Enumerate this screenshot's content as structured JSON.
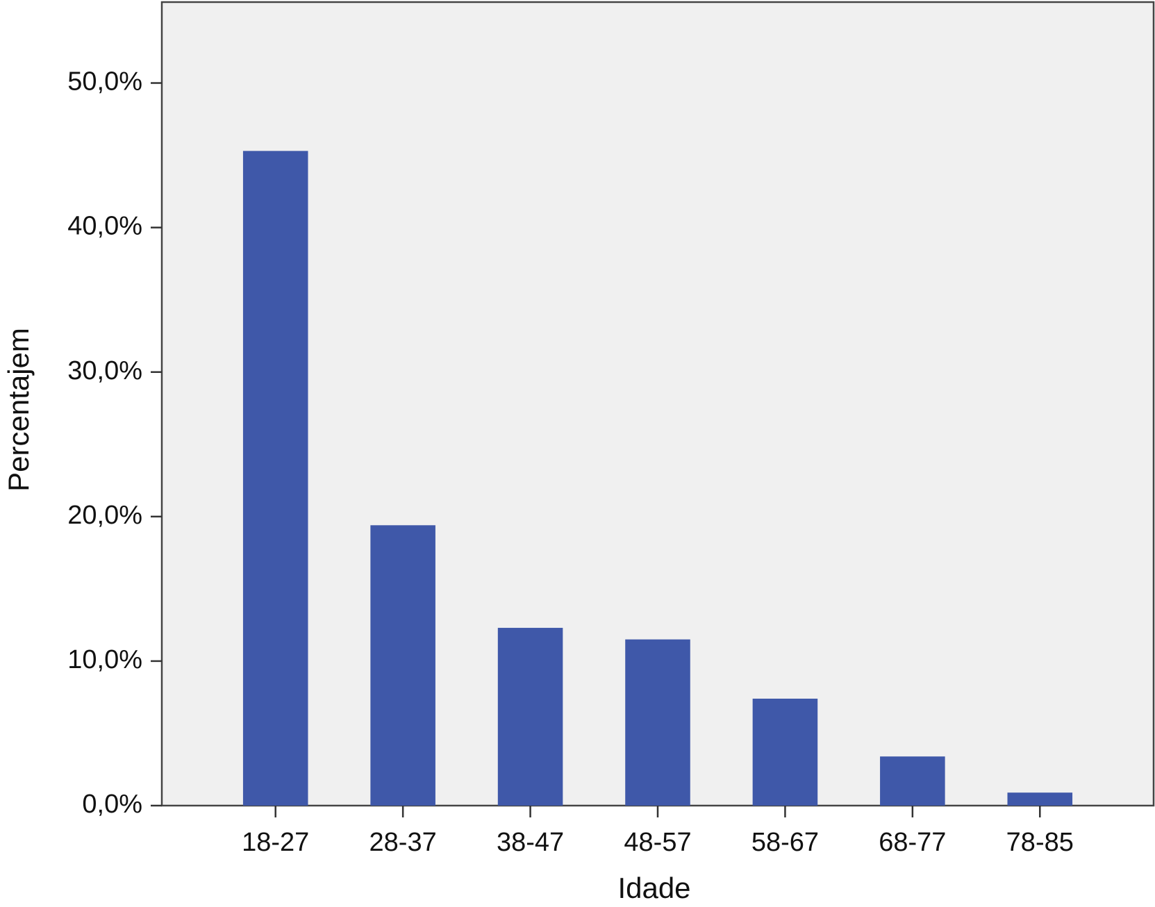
{
  "chart_data": {
    "type": "bar",
    "x_label": "Idade",
    "y_label": "Percentajem",
    "categories": [
      "18-27",
      "28-37",
      "38-47",
      "48-57",
      "58-67",
      "68-77",
      "78-85"
    ],
    "values": [
      45.3,
      19.4,
      12.3,
      11.5,
      7.4,
      3.4,
      0.9
    ],
    "color": "#3f58a9",
    "ylim": [
      0,
      55.6
    ],
    "yticks": [
      {
        "value": 0,
        "label": "0,0%"
      },
      {
        "value": 10,
        "label": "10,0%"
      },
      {
        "value": 20,
        "label": "20,0%"
      },
      {
        "value": 30,
        "label": "30,0%"
      },
      {
        "value": 40,
        "label": "40,0%"
      },
      {
        "value": 50,
        "label": "50,0%"
      }
    ],
    "grid": false
  }
}
